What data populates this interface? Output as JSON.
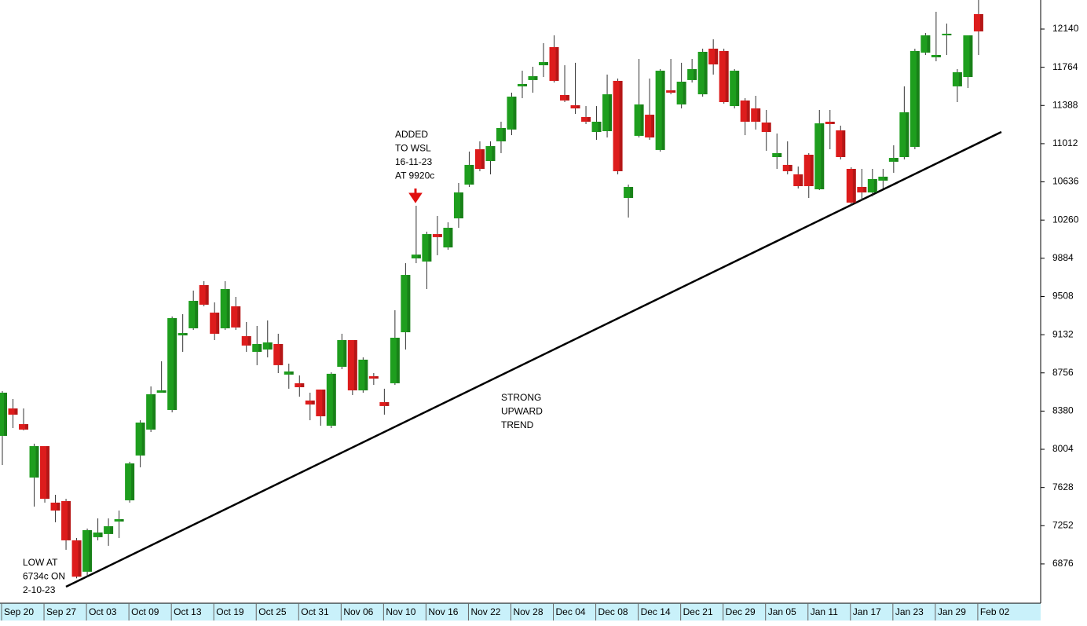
{
  "chart_data": {
    "type": "candlestick",
    "categories": [
      "Sep 20",
      null,
      null,
      null,
      "Sep 27",
      null,
      null,
      null,
      "Oct 03",
      null,
      null,
      null,
      "Oct 09",
      null,
      null,
      null,
      "Oct 13",
      null,
      null,
      null,
      "Oct 19",
      null,
      null,
      null,
      "Oct 25",
      null,
      null,
      null,
      "Oct 31",
      null,
      null,
      null,
      "Nov 06",
      null,
      null,
      null,
      "Nov 10",
      null,
      null,
      null,
      "Nov 16",
      null,
      null,
      null,
      "Nov 22",
      null,
      null,
      null,
      "Nov 28",
      null,
      null,
      null,
      "Dec 04",
      null,
      null,
      null,
      "Dec 08",
      null,
      null,
      null,
      "Dec 14",
      null,
      null,
      null,
      "Dec 21",
      null,
      null,
      null,
      "Dec 29",
      null,
      null,
      null,
      "Jan 05",
      null,
      null,
      null,
      "Jan 11",
      null,
      null,
      null,
      "Jan 17",
      null,
      null,
      null,
      "Jan 23",
      null,
      null,
      null,
      "Jan 29",
      null,
      null,
      null,
      "Feb 02"
    ],
    "open": [
      8136,
      8406,
      8252,
      7726,
      8035,
      7479,
      7494,
      7108,
      6799,
      7139,
      7170,
      7293,
      7502,
      7943,
      8198,
      8561,
      8391,
      9125,
      9195,
      9620,
      9349,
      9195,
      9411,
      9118,
      8963,
      8986,
      9040,
      8739,
      8654,
      8484,
      8592,
      8236,
      8816,
      9079,
      8584,
      8723,
      8468,
      8654,
      9156,
      9883,
      9852,
      10122,
      9991,
      10277,
      10609,
      10957,
      10841,
      11035,
      11151,
      11576,
      11638,
      11784,
      11962,
      11491,
      11390,
      11274,
      11127,
      11135,
      11630,
      10478,
      11089,
      11297,
      10950,
      11537,
      11398,
      11638,
      11498,
      11947,
      11924,
      11382,
      11437,
      11359,
      11220,
      10880,
      10803,
      10710,
      10903,
      10563,
      11228,
      11143,
      10764,
      10586,
      10532,
      10648,
      10834,
      10880,
      10980,
      11908,
      11862,
      12094,
      11576,
      11668,
      12287
    ],
    "high": [
      8576,
      8499,
      8406,
      8059,
      8035,
      7556,
      7517,
      7131,
      7224,
      7324,
      7324,
      7401,
      7881,
      8290,
      8623,
      8870,
      9311,
      9334,
      9566,
      9659,
      9450,
      9659,
      9504,
      9257,
      9218,
      9272,
      9141,
      8847,
      8731,
      8561,
      8592,
      8762,
      9141,
      9079,
      8909,
      8754,
      8600,
      9373,
      9836,
      10401,
      10146,
      10300,
      10238,
      10625,
      10934,
      11035,
      11035,
      11228,
      11514,
      11730,
      11769,
      12001,
      12078,
      11784,
      11808,
      11382,
      11382,
      11692,
      11653,
      10609,
      11846,
      11653,
      11746,
      11846,
      11808,
      11846,
      11947,
      12039,
      11947,
      11746,
      11460,
      11483,
      11344,
      11112,
      11035,
      10787,
      10919,
      11344,
      11344,
      11189,
      10780,
      10764,
      10764,
      10764,
      10996,
      11576,
      11947,
      12101,
      12310,
      12194,
      11746,
      12078,
      12426
    ],
    "low": [
      7850,
      8213,
      8190,
      7440,
      7479,
      7286,
      7015,
      6734,
      6744,
      7108,
      7054,
      7131,
      7479,
      7827,
      8174,
      8561,
      8368,
      8963,
      9179,
      9411,
      9079,
      9179,
      9179,
      8963,
      8832,
      8909,
      8754,
      8600,
      8522,
      8290,
      8236,
      8213,
      8793,
      8538,
      8561,
      8638,
      8345,
      8638,
      8986,
      9836,
      9581,
      9914,
      9968,
      10184,
      10586,
      10741,
      10710,
      10919,
      11096,
      11460,
      11514,
      11668,
      11614,
      11421,
      11305,
      11205,
      11050,
      11073,
      10710,
      10285,
      11073,
      11050,
      10934,
      11498,
      11359,
      11614,
      11475,
      11692,
      11406,
      11359,
      11096,
      11151,
      10942,
      10764,
      10710,
      10571,
      10478,
      10555,
      10957,
      10857,
      10401,
      10455,
      10493,
      10571,
      10725,
      10857,
      10957,
      11885,
      11823,
      11885,
      11421,
      11560,
      11885
    ],
    "close": [
      8561,
      8345,
      8198,
      8035,
      7517,
      7401,
      7108,
      6750,
      7208,
      7185,
      7247,
      7316,
      7865,
      8267,
      8546,
      8584,
      9295,
      9148,
      9465,
      9427,
      9141,
      9581,
      9203,
      9025,
      9040,
      9056,
      8832,
      8770,
      8615,
      8445,
      8329,
      8747,
      9079,
      8584,
      8886,
      8700,
      8430,
      9102,
      9720,
      9920,
      10122,
      10092,
      10184,
      10532,
      10803,
      10764,
      10988,
      11166,
      11475,
      11599,
      11676,
      11815,
      11630,
      11437,
      11359,
      11228,
      11228,
      11498,
      10741,
      10586,
      11398,
      11073,
      11730,
      11514,
      11622,
      11746,
      11916,
      11792,
      11421,
      11730,
      11228,
      11228,
      11127,
      10919,
      10741,
      10594,
      10594,
      11212,
      11205,
      10880,
      10432,
      10532,
      10664,
      10687,
      10872,
      11321,
      11924,
      12078,
      11885,
      12094,
      11715,
      12078,
      12117
    ],
    "up_color": "#1e9e1e",
    "down_color": "#dd1c1c",
    "ylim": [
      6489,
      12426
    ],
    "yticks": [
      6876,
      7252,
      7628,
      8004,
      8380,
      8756,
      9132,
      9508,
      9884,
      10260,
      10636,
      11012,
      11388,
      11764,
      12140
    ],
    "annotation_color": "#2a2ae6",
    "annotations": [
      {
        "lines": [
          "ADDED",
          "TO WSL",
          "16-11-23",
          "AT 9920c"
        ]
      },
      {
        "lines": [
          "LOW AT",
          "6734c ON",
          "2-10-23"
        ]
      },
      {
        "lines": [
          "STRONG",
          "UPWARD",
          "TREND"
        ]
      }
    ]
  }
}
